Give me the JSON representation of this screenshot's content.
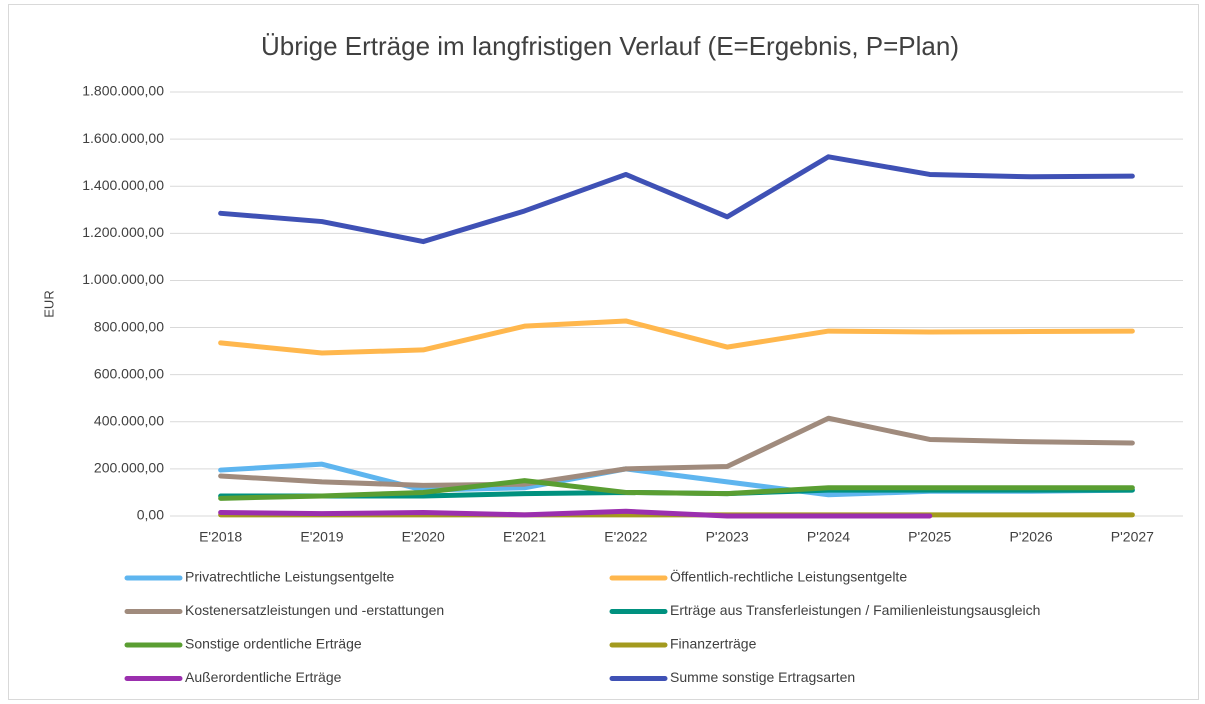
{
  "chart_data": {
    "type": "line",
    "title": "Übrige Erträge im langfristigen Verlauf (E=Ergebnis, P=Plan)",
    "y_label": "EUR",
    "categories": [
      "E'2018",
      "E'2019",
      "E'2020",
      "E'2021",
      "E'2022",
      "P'2023",
      "P'2024",
      "P'2025",
      "P'2026",
      "P'2027"
    ],
    "series": [
      {
        "name": "Privatrechtliche Leistungsentgelte",
        "color": "#5eb5ef",
        "values": [
          195000,
          220000,
          110000,
          120000,
          200000,
          145000,
          90000,
          105000,
          105000,
          110000
        ]
      },
      {
        "name": "Öffentlich-rechtliche Leistungsentgelte",
        "color": "#ffb74d",
        "values": [
          735000,
          692000,
          705000,
          806000,
          828000,
          717000,
          785000,
          781000,
          783000,
          785000
        ]
      },
      {
        "name": "Kostenersatzleistungen und -erstattungen",
        "color": "#a08b7d",
        "values": [
          170000,
          145000,
          130000,
          135000,
          200000,
          210000,
          415000,
          325000,
          315000,
          310000
        ]
      },
      {
        "name": "Erträge aus Transferleistungen / Familienleistungsausgleich",
        "color": "#00917f",
        "values": [
          85000,
          85000,
          85000,
          95000,
          100000,
          95000,
          110000,
          110000,
          110000,
          110000
        ]
      },
      {
        "name": "Sonstige ordentliche Erträge",
        "color": "#5a9e32",
        "values": [
          75000,
          85000,
          100000,
          150000,
          100000,
          95000,
          120000,
          120000,
          120000,
          120000
        ]
      },
      {
        "name": "Finanzerträge",
        "color": "#a39a1e",
        "values": [
          5000,
          5000,
          5000,
          5000,
          5000,
          5000,
          5000,
          5000,
          5000,
          5000
        ]
      },
      {
        "name": "Außerordentliche Erträge",
        "color": "#9b2fae",
        "values": [
          15000,
          10000,
          15000,
          5000,
          20000,
          0,
          0,
          0,
          null,
          null
        ]
      },
      {
        "name": "Summe sonstige Ertragsarten",
        "color": "#3f51b5",
        "values": [
          1285000,
          1250000,
          1165000,
          1295000,
          1450000,
          1270000,
          1525000,
          1450000,
          1440000,
          1443000
        ]
      }
    ],
    "ylim": [
      0,
      1800000
    ],
    "yticks": [
      {
        "value": 0,
        "label": "0,00"
      },
      {
        "value": 200000,
        "label": "200.000,00"
      },
      {
        "value": 400000,
        "label": "400.000,00"
      },
      {
        "value": 600000,
        "label": "600.000,00"
      },
      {
        "value": 800000,
        "label": "800.000,00"
      },
      {
        "value": 1000000,
        "label": "1.000.000,00"
      },
      {
        "value": 1200000,
        "label": "1.200.000,00"
      },
      {
        "value": 1400000,
        "label": "1.400.000,00"
      },
      {
        "value": 1600000,
        "label": "1.600.000,00"
      },
      {
        "value": 1800000,
        "label": "1.800.000,00"
      }
    ],
    "grid": true
  }
}
